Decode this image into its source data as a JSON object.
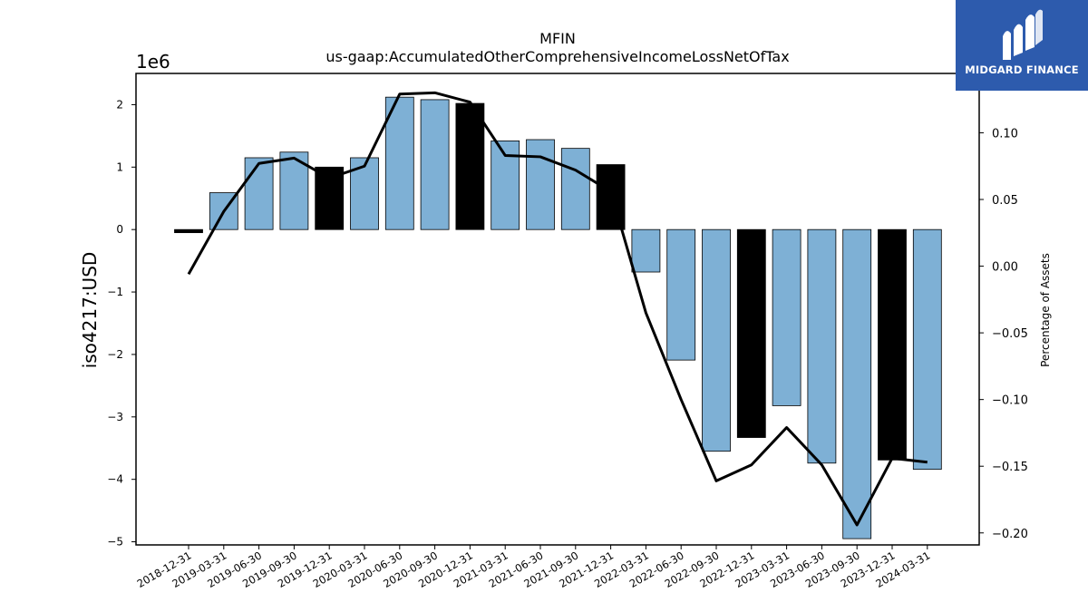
{
  "chart_data": {
    "type": "bar",
    "title": "MFIN",
    "subtitle": "us-gaap:AccumulatedOtherComprehensiveIncomeLossNetOfTax",
    "ylabel": "iso4217:USD",
    "y_offset_label": "1e6",
    "y2label": "Percentage of Assets",
    "ylim": [
      -5050000,
      2500000
    ],
    "y2lim": [
      -0.209,
      0.1445
    ],
    "yticks": [
      -5,
      -4,
      -3,
      -2,
      -1,
      0,
      1,
      2
    ],
    "y2ticks": [
      "−0.20",
      "−0.15",
      "−0.10",
      "−0.05",
      "0.00",
      "0.05",
      "0.10"
    ],
    "y2tick_values": [
      -0.2,
      -0.15,
      -0.1,
      -0.05,
      0.0,
      0.05,
      0.1
    ],
    "categories": [
      "2018-12-31",
      "2019-03-31",
      "2019-06-30",
      "2019-09-30",
      "2019-12-31",
      "2020-03-31",
      "2020-06-30",
      "2020-09-30",
      "2020-12-31",
      "2021-03-31",
      "2021-06-30",
      "2021-09-30",
      "2021-12-31",
      "2022-03-31",
      "2022-06-30",
      "2022-09-30",
      "2022-12-31",
      "2023-03-31",
      "2023-06-30",
      "2023-09-30",
      "2023-12-31",
      "2024-03-31"
    ],
    "series": [
      {
        "type": "bar",
        "values": [
          -50000,
          590000,
          1150000,
          1240000,
          1000000,
          1150000,
          2120000,
          2080000,
          2020000,
          1420000,
          1440000,
          1300000,
          1040000,
          -680000,
          -2090000,
          -3550000,
          -3330000,
          -2820000,
          -3740000,
          -4950000,
          -3690000,
          -3840000
        ],
        "highlight": [
          true,
          false,
          false,
          false,
          true,
          false,
          false,
          false,
          true,
          false,
          false,
          false,
          true,
          false,
          false,
          false,
          true,
          false,
          false,
          false,
          true,
          false
        ]
      },
      {
        "type": "line",
        "axis": "right",
        "values": [
          -0.006,
          0.041,
          0.077,
          0.081,
          0.066,
          0.075,
          0.129,
          0.13,
          0.123,
          0.083,
          0.082,
          0.072,
          0.056,
          -0.035,
          -0.1,
          -0.161,
          -0.149,
          -0.121,
          -0.149,
          -0.194,
          -0.144,
          -0.147
        ]
      }
    ],
    "colors": {
      "bar": "#7eb0d5",
      "bar_highlight": "#000000",
      "line": "#000000",
      "edge": "#000000"
    }
  },
  "logo": {
    "text": "MIDGARD FINANCE",
    "icon": "midgard-m-logo-icon",
    "background": "#2d5bad"
  }
}
